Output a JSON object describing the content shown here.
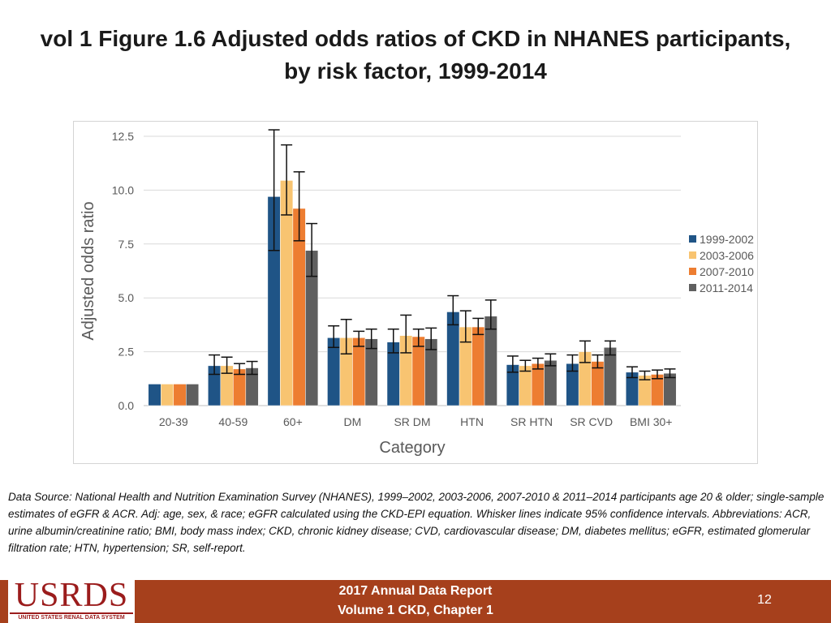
{
  "slide": {
    "title_line1": "vol 1 Figure 1.6 Adjusted odds ratios of CKD in NHANES participants,",
    "title_line2": "by risk factor, 1999-2014",
    "source_text": "Data Source: National Health and Nutrition Examination Survey (NHANES), 1999–2002, 2003-2006, 2007-2010 & 2011–2014 participants age 20 & older; single-sample estimates of eGFR & ACR. Adj: age, sex, & race; eGFR calculated using the CKD-EPI equation. Whisker lines indicate 95% confidence intervals. Abbreviations: ACR, urine albumin/creatinine ratio; BMI, body mass index; CKD, chronic kidney disease; CVD, cardiovascular disease; DM, diabetes mellitus; eGFR, estimated glomerular filtration rate; HTN, hypertension; SR, self-report."
  },
  "footer": {
    "logo_text": "USRDS",
    "logo_subtext": "UNITED STATES RENAL DATA SYSTEM",
    "report_line1": "2017 Annual Data Report",
    "report_line2": "Volume 1 CKD, Chapter 1",
    "page_number": "12",
    "background_color": "#a6401c",
    "logo_color": "#9b1c1c"
  },
  "chart_data": {
    "type": "bar",
    "title": "",
    "xlabel": "Category",
    "ylabel": "Adjusted odds ratio",
    "ylim": [
      0,
      12.5
    ],
    "yticks": [
      "0.0",
      "2.5",
      "5.0",
      "7.5",
      "10.0",
      "12.5"
    ],
    "grid": true,
    "legend_position": "right",
    "categories": [
      "20-39",
      "40-59",
      "60+",
      "DM",
      "SR DM",
      "HTN",
      "SR HTN",
      "SR CVD",
      "BMI 30+"
    ],
    "series": [
      {
        "name": "1999-2002",
        "color": "#1f5486",
        "values": [
          1.0,
          1.85,
          9.7,
          3.15,
          2.95,
          4.35,
          1.9,
          1.95,
          1.55
        ],
        "ci_low": [
          1.0,
          1.45,
          7.2,
          2.7,
          2.45,
          3.75,
          1.55,
          1.6,
          1.3
        ],
        "ci_high": [
          1.0,
          2.35,
          12.8,
          3.7,
          3.55,
          5.1,
          2.3,
          2.35,
          1.8
        ]
      },
      {
        "name": "2003-2006",
        "color": "#f8c471",
        "values": [
          1.0,
          1.85,
          10.45,
          3.15,
          3.25,
          3.65,
          1.85,
          2.5,
          1.4
        ],
        "ci_low": [
          1.0,
          1.5,
          8.85,
          2.4,
          2.45,
          2.95,
          1.6,
          2.0,
          1.2
        ],
        "ci_high": [
          1.0,
          2.25,
          12.1,
          4.0,
          4.2,
          4.4,
          2.1,
          3.0,
          1.6
        ]
      },
      {
        "name": "2007-2010",
        "color": "#ed7d31",
        "values": [
          1.0,
          1.7,
          9.15,
          3.15,
          3.2,
          3.65,
          1.95,
          2.05,
          1.45
        ],
        "ci_low": [
          1.0,
          1.45,
          7.65,
          2.75,
          2.75,
          3.3,
          1.7,
          1.75,
          1.25
        ],
        "ci_high": [
          1.0,
          1.95,
          10.85,
          3.45,
          3.55,
          4.05,
          2.2,
          2.35,
          1.65
        ]
      },
      {
        "name": "2011-2014",
        "color": "#5f5f5f",
        "values": [
          1.0,
          1.75,
          7.2,
          3.1,
          3.1,
          4.15,
          2.1,
          2.7,
          1.5
        ],
        "ci_low": [
          1.0,
          1.45,
          6.0,
          2.65,
          2.6,
          3.55,
          1.85,
          2.35,
          1.3
        ],
        "ci_high": [
          1.0,
          2.05,
          8.45,
          3.55,
          3.6,
          4.9,
          2.4,
          3.0,
          1.7
        ]
      }
    ]
  },
  "colors": {
    "gridline": "#d9d9d9",
    "axis_text": "#595959",
    "whisker": "#111111"
  }
}
